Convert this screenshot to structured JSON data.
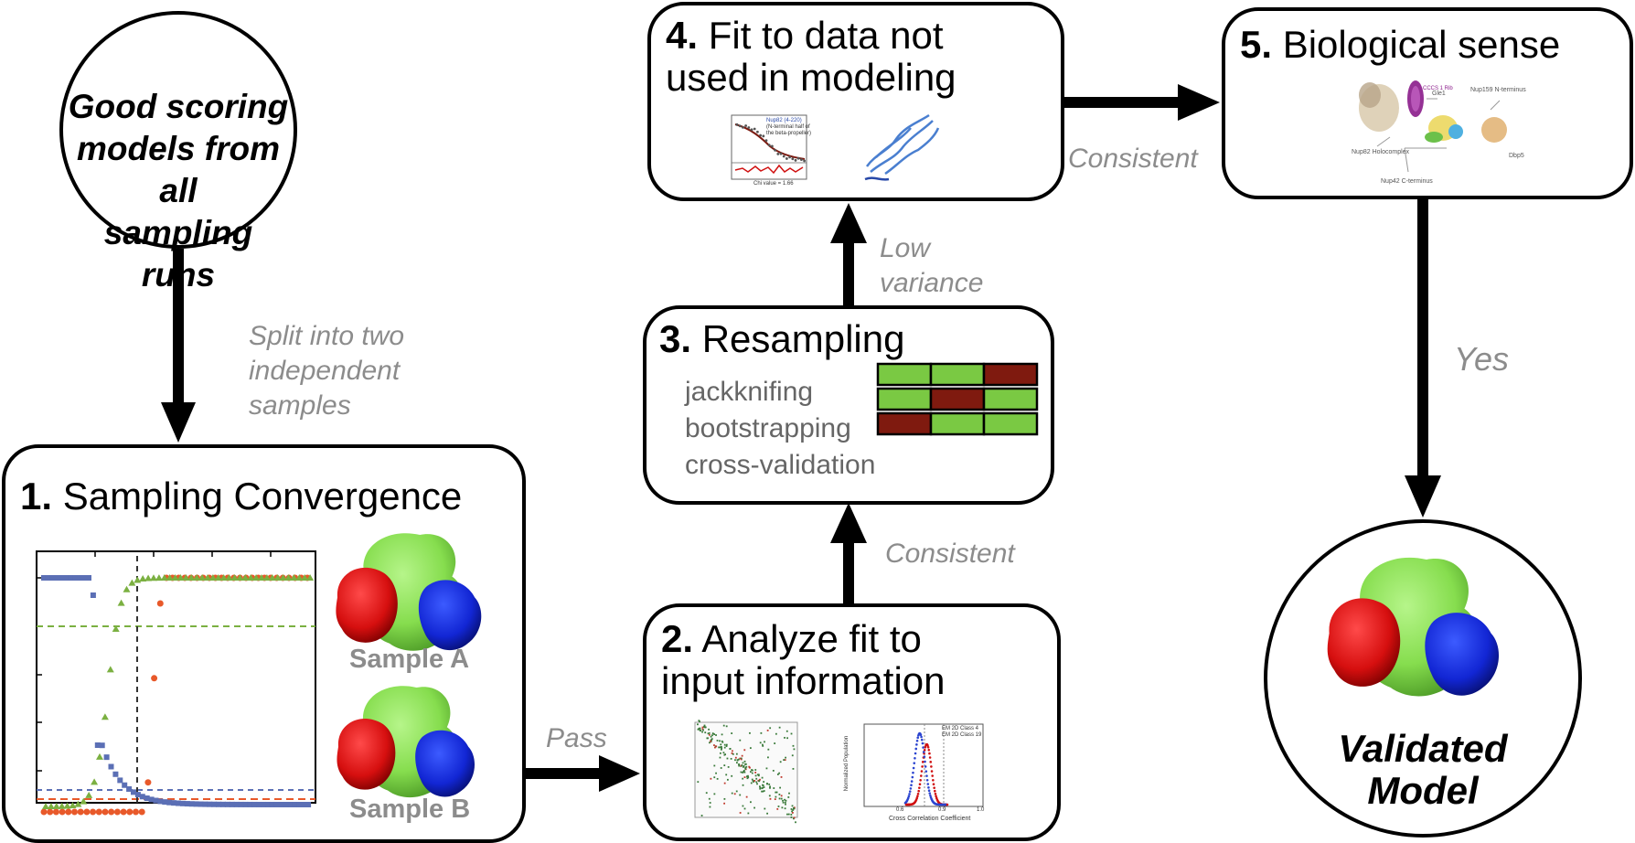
{
  "start_node": {
    "lines": [
      "Good scoring",
      "models from all",
      "sampling runs"
    ]
  },
  "edges": {
    "split": [
      "Split into two",
      "independent",
      "samples"
    ],
    "pass": "Pass",
    "consistent_2_3": "Consistent",
    "low_variance": [
      "Low",
      "variance"
    ],
    "consistent_4_5": "Consistent",
    "yes": "Yes"
  },
  "steps": {
    "s1": {
      "num": "1.",
      "title": "Sampling Convergence",
      "sample_a": "Sample A",
      "sample_b": "Sample B"
    },
    "s2": {
      "num": "2.",
      "title_lines": [
        "Analyze fit to",
        "input information"
      ],
      "hist_legend": [
        "EM 2D Class 4",
        "EM 2D Class 19"
      ],
      "hist_xlabel": "Cross Correlation Coefficient",
      "hist_ylabel": "Normalized Population",
      "hist_ticks": [
        "0.6",
        "0.9",
        "1.0"
      ]
    },
    "s3": {
      "num": "3.",
      "title": "Resampling",
      "methods": [
        "jackknifing",
        "bootstrapping",
        "cross-validation"
      ]
    },
    "s4": {
      "num": "4.",
      "title_lines": [
        "Fit to data not",
        "used in modeling"
      ],
      "plot_title": [
        "Nup82 (4-220)",
        "(N-terminal half of",
        "the beta-propeller)"
      ],
      "plot_caption": "Chi value = 1.66"
    },
    "s5": {
      "num": "5.",
      "title": "Biological sense",
      "labels": [
        "Nup159 N-terminus",
        "Gle1",
        "Nup82 Holocomplex",
        "Nup42 C-terminus",
        "Dbp5",
        "CCCS 1 Rib"
      ]
    }
  },
  "end_node": {
    "lines": [
      "Validated",
      "Model"
    ]
  },
  "colors": {
    "arrow": "#000000",
    "edge_label": "#8c8c8c",
    "green": "#7ac943",
    "red": "#7f1a0f",
    "blue_series": "#5b6fb5",
    "orange_series": "#e8592a",
    "green_series": "#7bb041",
    "blob_green": "#8fe05a",
    "blob_red": "#e01010",
    "blob_blue": "#1020d0"
  },
  "resampling_grid": [
    [
      "green",
      "green",
      "red"
    ],
    [
      "green",
      "red",
      "green"
    ],
    [
      "red",
      "green",
      "green"
    ]
  ]
}
